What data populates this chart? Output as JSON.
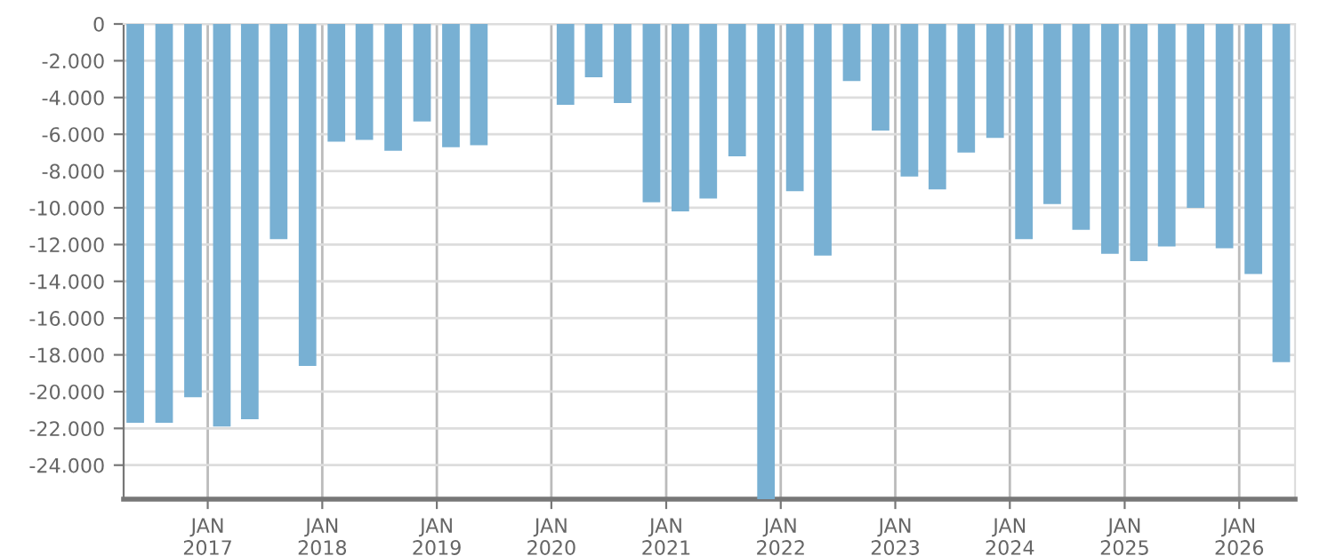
{
  "chart_data": {
    "type": "bar",
    "color": "#78b0d3",
    "x": [
      "2016-05-15",
      "2016-08-15",
      "2016-11-15",
      "2017-02-15",
      "2017-05-15",
      "2017-08-15",
      "2017-11-15",
      "2018-02-15",
      "2018-05-15",
      "2018-08-15",
      "2018-11-15",
      "2019-02-15",
      "2019-05-15",
      "2019-08-15",
      "2019-11-15",
      "2020-02-15",
      "2020-05-15",
      "2020-08-15",
      "2020-11-15",
      "2021-02-15",
      "2021-05-15",
      "2021-08-15",
      "2021-11-15",
      "2022-02-15",
      "2022-05-15",
      "2022-08-15",
      "2022-11-15",
      "2023-02-15",
      "2023-05-15",
      "2023-08-15",
      "2023-11-15",
      "2024-02-15",
      "2024-05-15",
      "2024-08-15",
      "2024-11-15",
      "2025-02-15",
      "2025-05-15",
      "2025-08-15",
      "2025-11-15",
      "2026-02-15",
      "2026-05-15"
    ],
    "values": [
      -21700,
      -21700,
      -20300,
      -21900,
      -21500,
      -11700,
      -18600,
      -6400,
      -6300,
      -6900,
      -5300,
      -6700,
      -6600,
      null,
      null,
      -4400,
      -2900,
      -4300,
      -9700,
      -10200,
      -9500,
      -7200,
      -25850,
      -9100,
      -12600,
      -3100,
      -5800,
      -8300,
      -9000,
      -7000,
      -6200,
      -11700,
      -9800,
      -11200,
      -12500,
      -12900,
      -12100,
      -10000,
      -12200,
      -13600,
      -18400
    ],
    "xlim": [
      "2016-04-08",
      "2026-06-28"
    ],
    "xticks": [
      {
        "value": "2017-01-01",
        "label": "JAN\n2017"
      },
      {
        "value": "2018-01-01",
        "label": "JAN\n2018"
      },
      {
        "value": "2019-01-01",
        "label": "JAN\n2019"
      },
      {
        "value": "2020-01-01",
        "label": "JAN\n2020"
      },
      {
        "value": "2021-01-01",
        "label": "JAN\n2021"
      },
      {
        "value": "2022-01-01",
        "label": "JAN\n2022"
      },
      {
        "value": "2023-01-01",
        "label": "JAN\n2023"
      },
      {
        "value": "2024-01-01",
        "label": "JAN\n2024"
      },
      {
        "value": "2025-01-01",
        "label": "JAN\n2025"
      },
      {
        "value": "2026-01-01",
        "label": "JAN\n2026"
      }
    ],
    "ylim": [
      -25850,
      0
    ],
    "yticks": [
      0,
      {
        "value": -2000,
        "label": "-2.000"
      },
      {
        "value": -4000,
        "label": "-4.000"
      },
      {
        "value": -6000,
        "label": "-6.000"
      },
      {
        "value": -8000,
        "label": "-8.000"
      },
      {
        "value": -10000,
        "label": "-10.000"
      },
      {
        "value": -12000,
        "label": "-12.000"
      },
      {
        "value": -14000,
        "label": "-14.000"
      },
      {
        "value": -16000,
        "label": "-16.000"
      },
      {
        "value": -18000,
        "label": "-18.000"
      },
      {
        "value": -20000,
        "label": "-20.000"
      },
      {
        "value": -22000,
        "label": "-22.000"
      },
      {
        "value": -24000,
        "label": "-24.000"
      }
    ],
    "grid": true,
    "legend": false
  }
}
